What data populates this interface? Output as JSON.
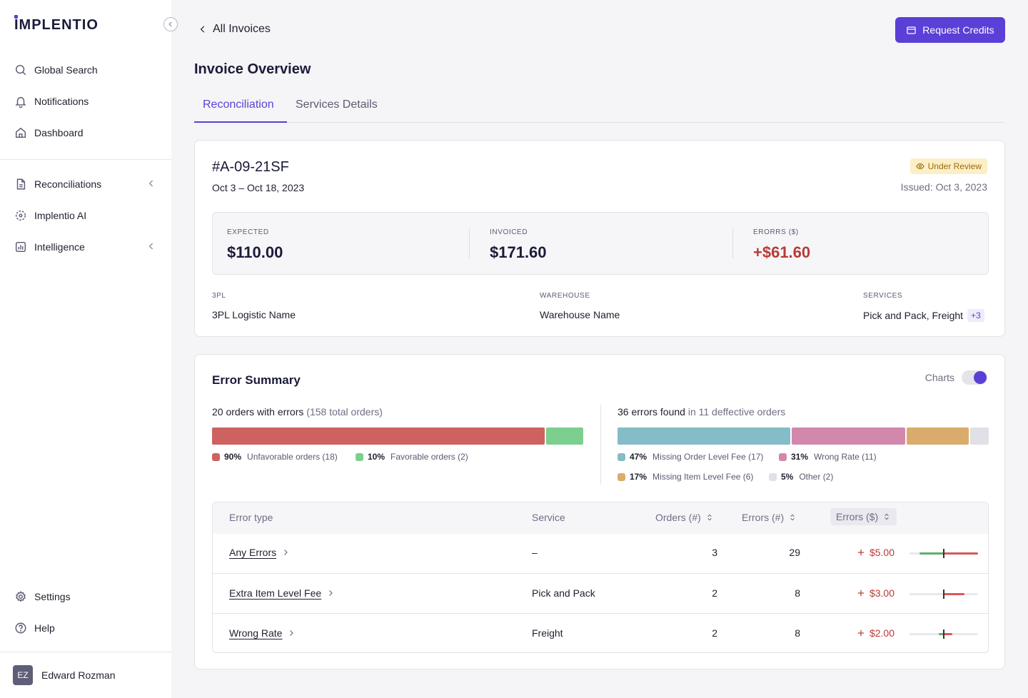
{
  "sidebar": {
    "logo": "IMPLENTIO",
    "nav_top": [
      {
        "label": "Global Search",
        "icon": "search-icon"
      },
      {
        "label": "Notifications",
        "icon": "bell-icon"
      },
      {
        "label": "Dashboard",
        "icon": "home-icon"
      }
    ],
    "nav_mid": [
      {
        "label": "Reconciliations",
        "icon": "document-icon"
      },
      {
        "label": "Implentio AI",
        "icon": "ai-sparkle-icon"
      },
      {
        "label": "Intelligence",
        "icon": "bar-chart-icon"
      }
    ],
    "nav_bottom": [
      {
        "label": "Settings",
        "icon": "gear-icon"
      },
      {
        "label": "Help",
        "icon": "help-icon"
      }
    ],
    "user": {
      "initials": "EZ",
      "name": "Edward Rozman"
    }
  },
  "header": {
    "back_label": "All Invoices",
    "request_credits_label": "Request Credits",
    "title": "Invoice Overview",
    "tabs": [
      "Reconciliation",
      "Services Details"
    ],
    "active_tab": "Reconciliation"
  },
  "invoice": {
    "id": "#A-09-21SF",
    "date_range": "Oct 3 – Oct 18, 2023",
    "status": "Under Review",
    "issued": "Issued: Oct 3, 2023",
    "expected_label": "EXPECTED",
    "expected_value": "$110.00",
    "invoiced_label": "INVOICED",
    "invoiced_value": "$171.60",
    "errors_label": "ERORRS ($)",
    "errors_value": "+$61.60",
    "threepl_label": "3PL",
    "threepl_value": "3PL Logistic Name",
    "warehouse_label": "WAREHOUSE",
    "warehouse_value": "Warehouse Name",
    "services_label": "SERVICES",
    "services_value": "Pick and Pack, Freight",
    "services_more": "+3"
  },
  "error_summary": {
    "title": "Error Summary",
    "charts_label": "Charts",
    "charts_on": true,
    "orders_head": "20 orders with errors",
    "orders_head_muted": "(158 total orders)",
    "orders_split": [
      {
        "pct": 90,
        "pct_label": "90%",
        "label": "Unfavorable orders (18)",
        "color": "#CD6260"
      },
      {
        "pct": 10,
        "pct_label": "10%",
        "label": "Favorable orders (2)",
        "color": "#7CCF8E"
      }
    ],
    "errors_head": "36 errors found",
    "errors_head_muted": "in 11 deffective orders",
    "errors_split": [
      {
        "pct": 47,
        "pct_label": "47%",
        "label": "Missing Order Level Fee (17)",
        "color": "#84BCC7"
      },
      {
        "pct": 31,
        "pct_label": "31%",
        "label": "Wrong Rate (11)",
        "color": "#D188AC"
      },
      {
        "pct": 17,
        "pct_label": "17%",
        "label": "Missing Item Level Fee (6)",
        "color": "#D9AC6C"
      },
      {
        "pct": 5,
        "pct_label": "5%",
        "label": "Other (2)",
        "color": "#E0E0E6"
      }
    ]
  },
  "table": {
    "headers": {
      "error_type": "Error type",
      "service": "Service",
      "orders": "Orders (#)",
      "errors": "Errors (#)",
      "errors_usd": "Errors ($)"
    },
    "rows": [
      {
        "error_type": "Any Errors",
        "service": "–",
        "orders": "3",
        "errors": "29",
        "amount": "$5.00",
        "mini_green": 0.35,
        "mini_red": 0.5
      },
      {
        "error_type": "Extra Item Level Fee",
        "service": "Pick and Pack",
        "orders": "2",
        "errors": "8",
        "amount": "$3.00",
        "mini_green": 0.0,
        "mini_red": 0.3
      },
      {
        "error_type": "Wrong Rate",
        "service": "Freight",
        "orders": "2",
        "errors": "8",
        "amount": "$2.00",
        "mini_green": 0.07,
        "mini_red": 0.12
      }
    ]
  }
}
